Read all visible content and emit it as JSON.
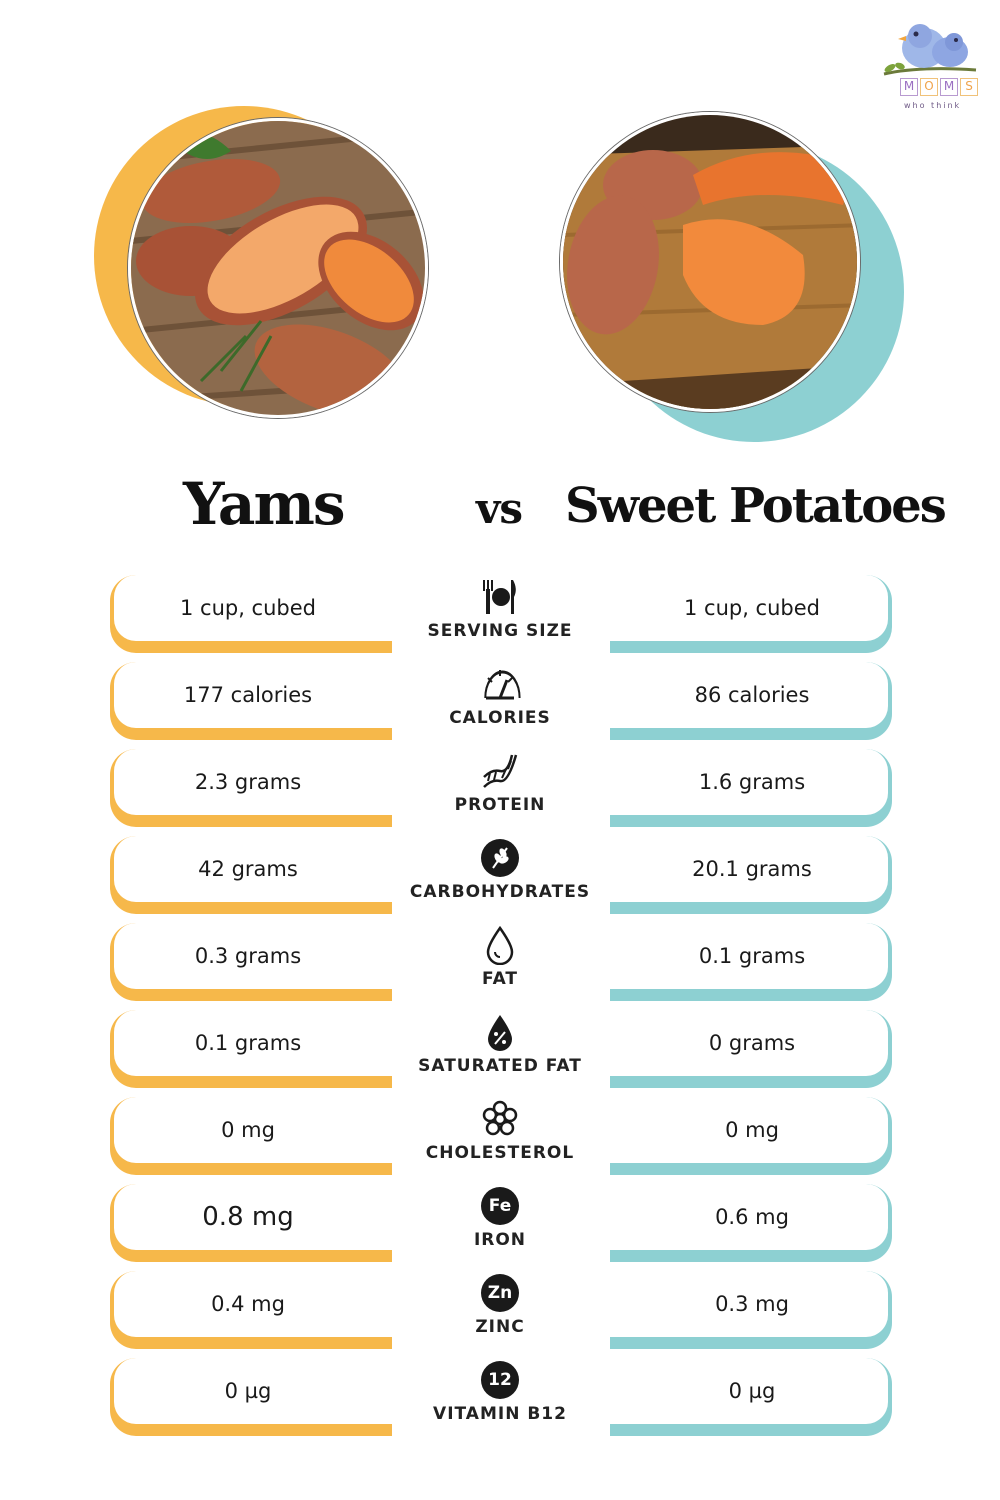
{
  "logo": {
    "letters": [
      "M",
      "O",
      "M",
      "S"
    ],
    "tagline": "who think",
    "icon": "bird-on-branch-icon"
  },
  "headings": {
    "left": "Yams",
    "vs": "vs",
    "right": "Sweet Potatoes"
  },
  "colors": {
    "yams": "#f6b84a",
    "sweet_potatoes": "#8dd0d2",
    "text": "#111111"
  },
  "images": {
    "left": "yams-photo",
    "right": "sweet-potatoes-photo"
  },
  "rows": [
    {
      "label": "SERVING SIZE",
      "icon": "fork-plate-knife-icon",
      "yams": "1 cup, cubed",
      "sweet": "1 cup, cubed"
    },
    {
      "label": "CALORIES",
      "icon": "gauge-icon",
      "yams": "177 calories",
      "sweet": "86 calories"
    },
    {
      "label": "PROTEIN",
      "icon": "dna-icon",
      "yams": "2.3 grams",
      "sweet": "1.6 grams"
    },
    {
      "label": "CARBOHYDRATES",
      "icon": "wheat-icon",
      "yams": "42 grams",
      "sweet": "20.1 grams"
    },
    {
      "label": "FAT",
      "icon": "drop-icon",
      "yams": "0.3 grams",
      "sweet": "0.1 grams"
    },
    {
      "label": "SATURATED FAT",
      "icon": "percent-drop-icon",
      "yams": "0.1 grams",
      "sweet": "0 grams"
    },
    {
      "label": "CHOLESTEROL",
      "icon": "molecule-flower-icon",
      "yams": "0 mg",
      "sweet": "0 mg"
    },
    {
      "label": "IRON",
      "icon": "iron-badge-icon",
      "badge": "Fe",
      "yams": "0.8 mg",
      "sweet": "0.6 mg"
    },
    {
      "label": "ZINC",
      "icon": "zinc-badge-icon",
      "badge": "Zn",
      "yams": "0.4 mg",
      "sweet": "0.3 mg"
    },
    {
      "label": "VITAMIN B12",
      "icon": "vitamin-b12-badge-icon",
      "badge": "12",
      "yams": "0 µg",
      "sweet": "0 µg"
    }
  ]
}
